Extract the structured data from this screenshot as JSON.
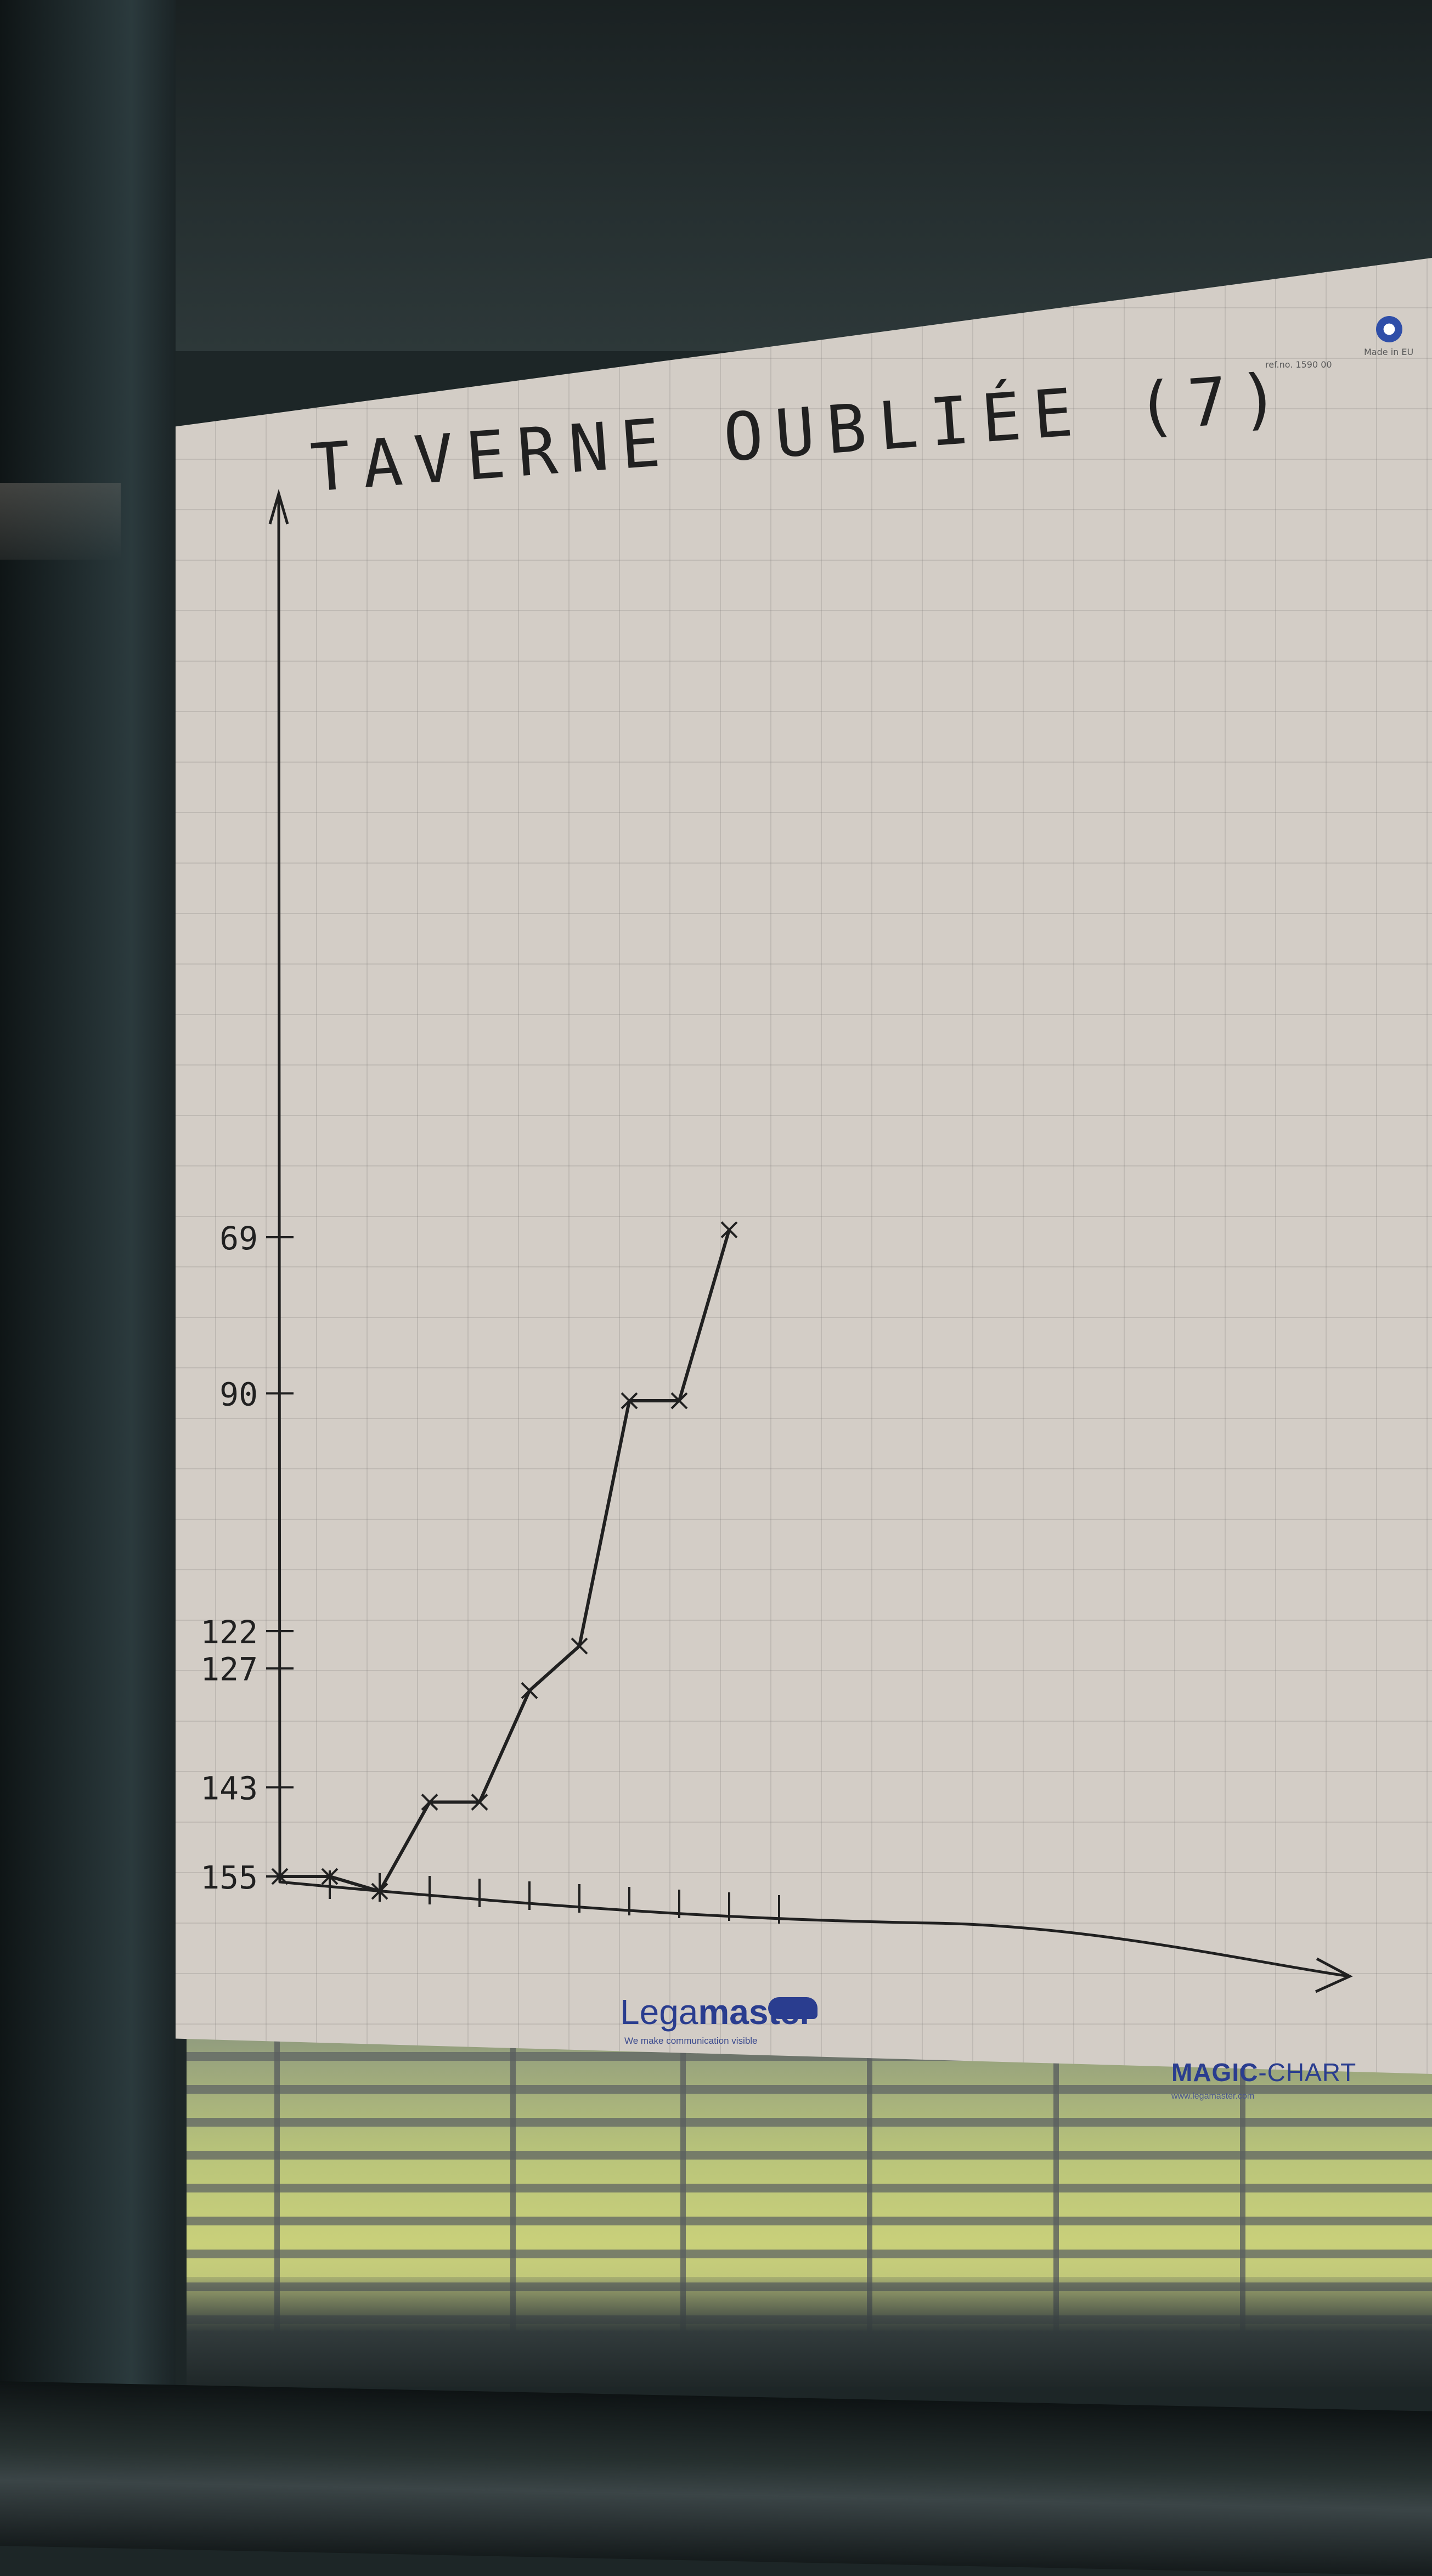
{
  "chart_data": {
    "type": "line",
    "title": "TAVERNE OUBLIÉE (7)",
    "xlabel": "",
    "ylabel": "",
    "x": [
      0,
      1,
      2,
      3,
      4,
      5,
      6,
      7,
      8,
      9
    ],
    "values": [
      155,
      155,
      157,
      145,
      145,
      130,
      124,
      91,
      91,
      68
    ],
    "yticks": [
      155,
      143,
      127,
      122,
      90,
      69
    ],
    "xticks_count": 11,
    "ylim": [
      0,
      170
    ],
    "grid": true,
    "line_color": "#202020"
  },
  "branding": {
    "logo_light": "Lega",
    "logo_bold": "master",
    "tagline": "We make communication visible",
    "product_bold": "MAGIC",
    "product_rest": "-CHART",
    "website": "www.legamaster.com",
    "ref_no": "ref.no. 1590 00",
    "made_in": "Made in EU",
    "brand_color": "#2a3d8f"
  }
}
